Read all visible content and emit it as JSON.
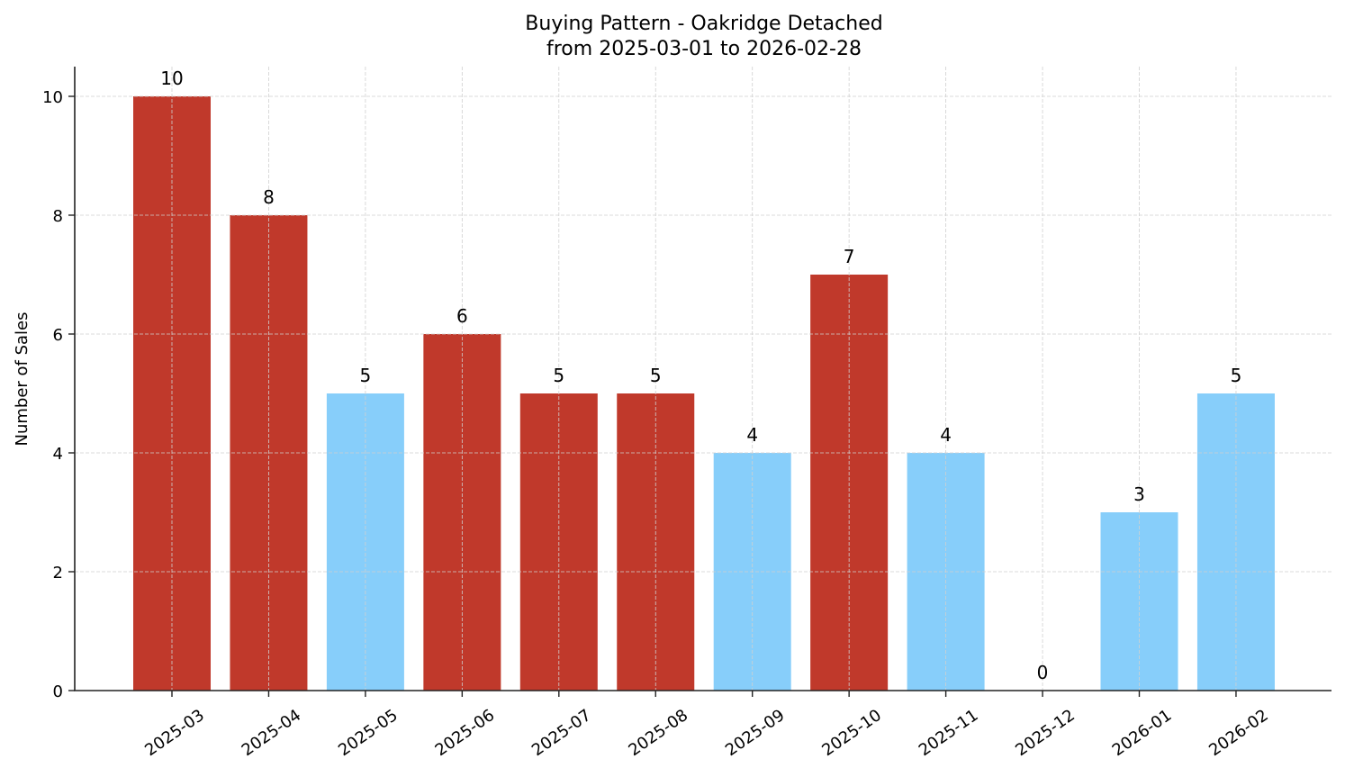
{
  "chart_data": {
    "type": "bar",
    "title": "Buying Pattern - Oakridge Detached",
    "subtitle": "from 2025-03-01 to 2026-02-28",
    "xlabel": "",
    "ylabel": "Number of Sales",
    "categories": [
      "2025-03",
      "2025-04",
      "2025-05",
      "2025-06",
      "2025-07",
      "2025-08",
      "2025-09",
      "2025-10",
      "2025-11",
      "2025-12",
      "2026-01",
      "2026-02"
    ],
    "values": [
      10,
      8,
      5,
      6,
      5,
      5,
      4,
      7,
      4,
      0,
      3,
      5
    ],
    "bar_colors": [
      "#C0392B",
      "#C0392B",
      "#87CEFA",
      "#C0392B",
      "#C0392B",
      "#C0392B",
      "#87CEFA",
      "#C0392B",
      "#87CEFA",
      "#87CEFA",
      "#87CEFA",
      "#87CEFA"
    ],
    "data_labels": [
      "10",
      "8",
      "5",
      "6",
      "5",
      "5",
      "4",
      "7",
      "4",
      "0",
      "3",
      "5"
    ],
    "ylim": [
      0,
      10.5
    ],
    "yticks": [
      0,
      2,
      4,
      6,
      8,
      10
    ],
    "grid": true,
    "grid_style": "dashed",
    "legend": null,
    "colors": {
      "high": "#C0392B",
      "low": "#87CEFA",
      "grid": "#d0d0d0",
      "axis": "#222222"
    }
  }
}
